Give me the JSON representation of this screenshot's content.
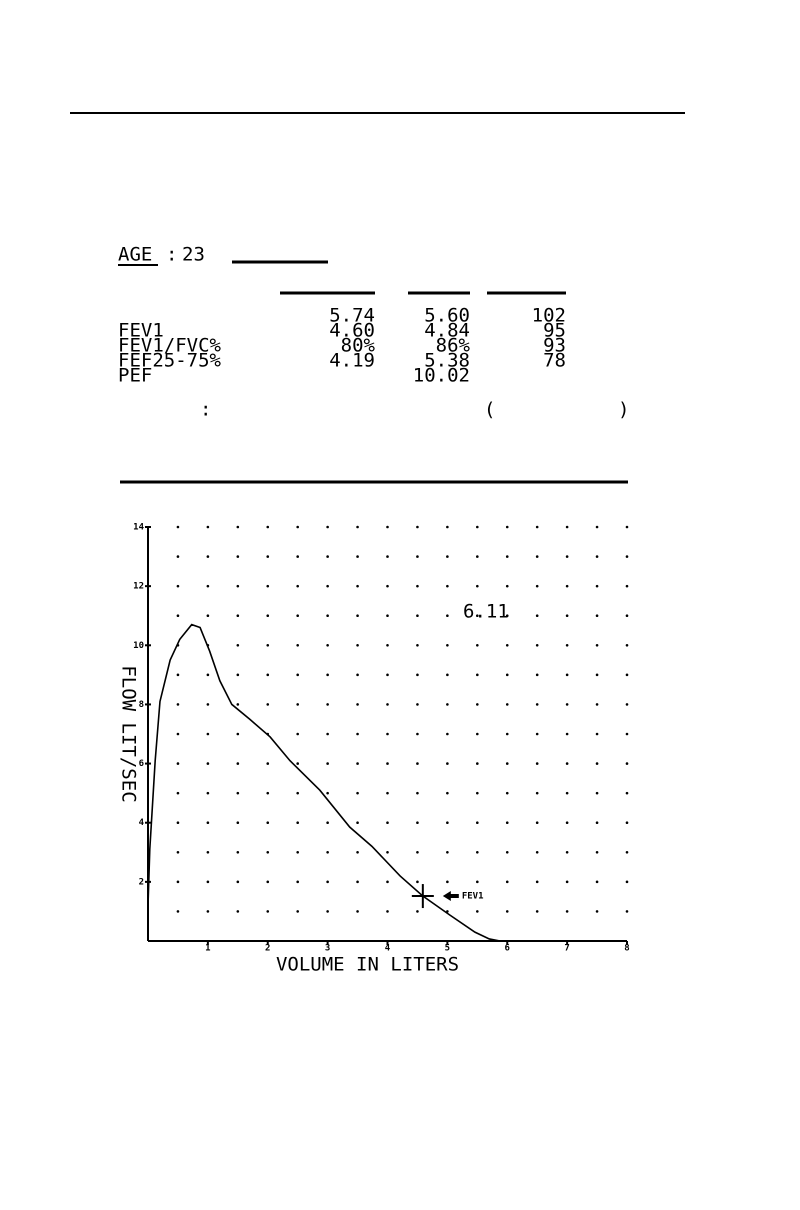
{
  "age": {
    "label": "AGE",
    "separator": ":",
    "value": "23"
  },
  "table": {
    "rows": [
      [
        null,
        "5.74",
        "5.60",
        "102"
      ],
      [
        "FEV1",
        "4.60",
        "4.84",
        "95"
      ],
      [
        "FEV1/FVC%",
        "80%",
        "86%",
        "93"
      ],
      [
        "FEF25-75%",
        "4.19",
        "5.38",
        "78"
      ],
      [
        "PEF",
        null,
        "10.02",
        null
      ]
    ]
  },
  "notes": {
    "colon": ":",
    "open_paren": "(",
    "close_paren": ")"
  },
  "chart_data": {
    "type": "line",
    "x_label": "VOLUME IN LITERS",
    "y_label": "FLOW LIT/SEC",
    "x": [
      0,
      0.03,
      0.12,
      0.2,
      0.37,
      0.53,
      0.73,
      0.87,
      1.03,
      1.2,
      1.4,
      1.7,
      2.04,
      2.37,
      2.87,
      3.37,
      3.74,
      4.21,
      4.59,
      5.04,
      5.46,
      5.7,
      5.88
    ],
    "series": [
      {
        "color": "#000000",
        "values": [
          1.2,
          3.1,
          6.1,
          8.1,
          9.5,
          10.2,
          10.7,
          10.6,
          9.8,
          8.8,
          8.0,
          7.5,
          6.9,
          6.1,
          5.1,
          3.85,
          3.2,
          2.2,
          1.52,
          0.88,
          0.3,
          0.07,
          0
        ]
      }
    ],
    "xlim": [
      0,
      8
    ],
    "ylim": [
      0,
      14
    ],
    "xticks": [
      1,
      2,
      3,
      4,
      5,
      6,
      7,
      8
    ],
    "yticks": [
      2,
      4,
      6,
      8,
      10,
      12,
      14
    ],
    "grid": true,
    "annotation": "6.11",
    "fev1_marker": {
      "x": 4.59,
      "y": 1.52,
      "label": "FEV1"
    }
  }
}
